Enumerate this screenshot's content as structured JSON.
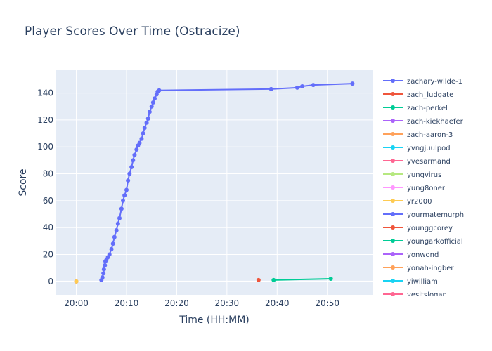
{
  "chart_data": {
    "type": "line",
    "title": "Player Scores Over Time (Ostracize)",
    "xlabel": "Time (HH:MM)",
    "ylabel": "Score",
    "x_unit": "minutes after 20:00",
    "xlim": [
      -4,
      59
    ],
    "ylim": [
      -10,
      157
    ],
    "x_ticks": [
      {
        "value": 0,
        "label": "20:00"
      },
      {
        "value": 10,
        "label": "20:10"
      },
      {
        "value": 20,
        "label": "20:20"
      },
      {
        "value": 30,
        "label": "20:30"
      },
      {
        "value": 40,
        "label": "20:40"
      },
      {
        "value": 50,
        "label": "20:50"
      }
    ],
    "y_ticks": [
      0,
      20,
      40,
      60,
      80,
      100,
      120,
      140
    ],
    "grid": true,
    "legend_position": "right",
    "series": [
      {
        "name": "zachary-wilde-1",
        "color": "#636efa",
        "x": [
          5.0,
          5.2,
          5.4,
          5.5,
          5.7,
          5.8,
          6.0,
          6.3,
          6.6,
          7.0,
          7.3,
          7.6,
          8.0,
          8.3,
          8.6,
          9.0,
          9.3,
          9.6,
          10.0,
          10.3,
          10.6,
          11.0,
          11.3,
          11.6,
          12.0,
          12.3,
          12.6,
          13.0,
          13.3,
          13.6,
          14.0,
          14.3,
          14.6,
          15.0,
          15.3,
          15.6,
          16.0,
          16.2,
          16.5,
          38.8,
          44.0,
          45.0,
          47.2,
          55.0
        ],
        "y": [
          1,
          3,
          6,
          9,
          12,
          15,
          16,
          18,
          20,
          24,
          28,
          33,
          38,
          43,
          47,
          54,
          60,
          64,
          68,
          75,
          80,
          85,
          90,
          94,
          98,
          101,
          103,
          106,
          110,
          114,
          118,
          121,
          126,
          130,
          133,
          136,
          139,
          141,
          142,
          143,
          144,
          145,
          146,
          147
        ]
      },
      {
        "name": "zach_ludgate",
        "color": "#ef553b",
        "x": [
          36.3
        ],
        "y": [
          1
        ]
      },
      {
        "name": "zach-perkel",
        "color": "#00cc96",
        "x": [
          39.3,
          50.7
        ],
        "y": [
          1,
          2
        ]
      },
      {
        "name": "zach-kiekhaefer",
        "color": "#ab63fa",
        "x": [
          0
        ],
        "y": [
          0
        ]
      },
      {
        "name": "zach-aaron-3",
        "color": "#ffa15a",
        "x": [
          0
        ],
        "y": [
          0
        ]
      },
      {
        "name": "yvngjuulpod",
        "color": "#19d3f3",
        "x": [],
        "y": []
      },
      {
        "name": "yvesarmand",
        "color": "#ff6692",
        "x": [],
        "y": []
      },
      {
        "name": "yungvirus",
        "color": "#b6e880",
        "x": [],
        "y": []
      },
      {
        "name": "yung8oner",
        "color": "#ff97ff",
        "x": [],
        "y": []
      },
      {
        "name": "yr2000",
        "color": "#fecb52",
        "x": [
          0
        ],
        "y": [
          0
        ]
      },
      {
        "name": "yourmatemurph",
        "color": "#636efa",
        "x": [],
        "y": []
      },
      {
        "name": "younggcorey",
        "color": "#ef553b",
        "x": [],
        "y": []
      },
      {
        "name": "youngarkofficial",
        "color": "#00cc96",
        "x": [],
        "y": []
      },
      {
        "name": "yonwond",
        "color": "#ab63fa",
        "x": [],
        "y": []
      },
      {
        "name": "yonah-ingber",
        "color": "#ffa15a",
        "x": [],
        "y": []
      },
      {
        "name": "yiwilliam",
        "color": "#19d3f3",
        "x": [],
        "y": []
      },
      {
        "name": "yesitslogan",
        "color": "#ff6692",
        "x": [],
        "y": []
      }
    ]
  }
}
